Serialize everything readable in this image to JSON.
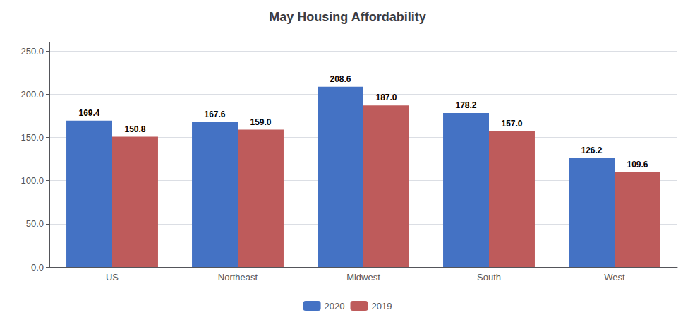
{
  "chart_data": {
    "type": "bar",
    "title": "May Housing Affordability",
    "categories": [
      "US",
      "Northeast",
      "Midwest",
      "South",
      "West"
    ],
    "series": [
      {
        "name": "2020",
        "color": "#4472C4",
        "values": [
          169.4,
          167.6,
          208.6,
          178.2,
          126.2
        ]
      },
      {
        "name": "2019",
        "color": "#BE5B5B",
        "values": [
          150.8,
          159.0,
          187.0,
          157.0,
          109.6
        ],
        "value_labels": [
          "150.8",
          "159.0",
          "187.0",
          "157.0",
          "109.6"
        ]
      }
    ],
    "ylim": [
      0,
      260
    ],
    "yticks": [
      {
        "value": 0,
        "label": "0.0"
      },
      {
        "value": 50,
        "label": "50.0"
      },
      {
        "value": 100,
        "label": "100.0"
      },
      {
        "value": 150,
        "label": "150.0"
      },
      {
        "value": 200,
        "label": "200.0"
      },
      {
        "value": 250,
        "label": "250.0"
      }
    ],
    "grid": true,
    "legend": "bottom",
    "data_labels": true
  }
}
